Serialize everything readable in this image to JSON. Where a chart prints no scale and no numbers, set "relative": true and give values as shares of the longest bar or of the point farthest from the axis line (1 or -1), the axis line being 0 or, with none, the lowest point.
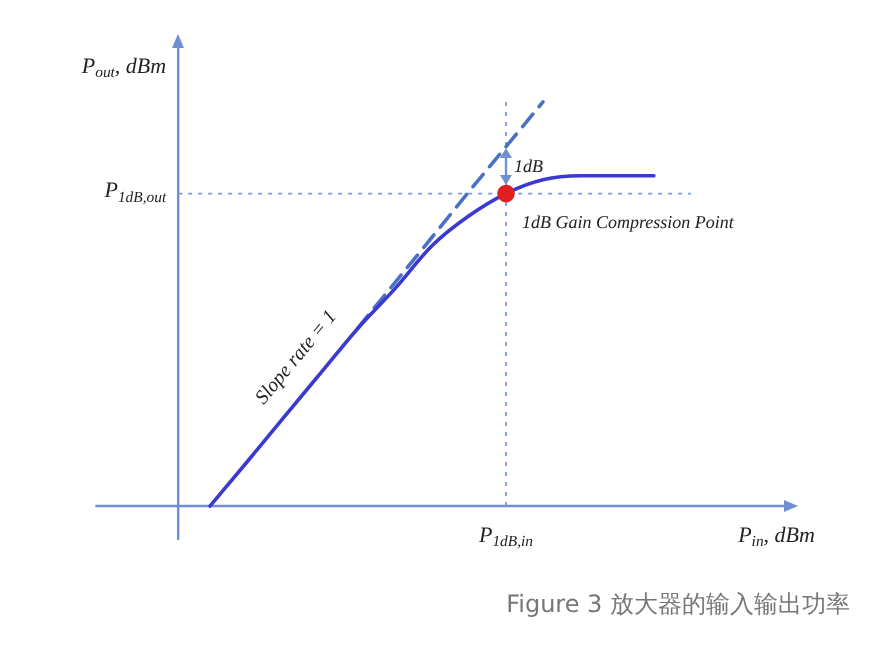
{
  "chart_data": {
    "type": "line",
    "relative": true,
    "ylabel": "P$_{out}$, dBm",
    "xlabel": "P$_{in}$, dBm",
    "categories": [
      null,
      null,
      null,
      null,
      null,
      null,
      null,
      null,
      null,
      null,
      null,
      null,
      null
    ],
    "series": [
      {
        "color": "#3a3ad0",
        "marker": "none",
        "line_style": "solid",
        "values": [
          0,
          0.109,
          0.22,
          0.33,
          0.44,
          0.538,
          0.644,
          0.718,
          0.773,
          0.807,
          0.817,
          0.817,
          0.817
        ]
      },
      {
        "color": "#4a72c4",
        "marker": "none",
        "line_style": "dashed",
        "values": [
          null,
          null,
          null,
          null,
          0.441,
          0.553,
          0.665,
          0.778,
          0.889,
          1,
          null,
          null,
          null
        ]
      },
      {
        "color": "#e02020",
        "marker": "circle",
        "values": [
          null,
          null,
          null,
          null,
          null,
          null,
          null,
          null,
          0.773,
          null,
          null,
          null,
          null
        ]
      }
    ],
    "ref_lines": [
      {
        "axis": "x",
        "label": "P$_{1dB,in}$",
        "color": "#7a9ad8",
        "line_style": "dotted"
      },
      {
        "axis": "y",
        "value": 0.773,
        "label": "P$_{1dB,out}$",
        "color": "#7a9ad8",
        "line_style": "dotted"
      }
    ],
    "annotations": [
      "1dB",
      {
        "text": "1dB Gain Compression Point",
        "y": 0.773
      },
      "Slope rate = 1",
      "Figure 3 放大器的输入输出功率"
    ]
  }
}
